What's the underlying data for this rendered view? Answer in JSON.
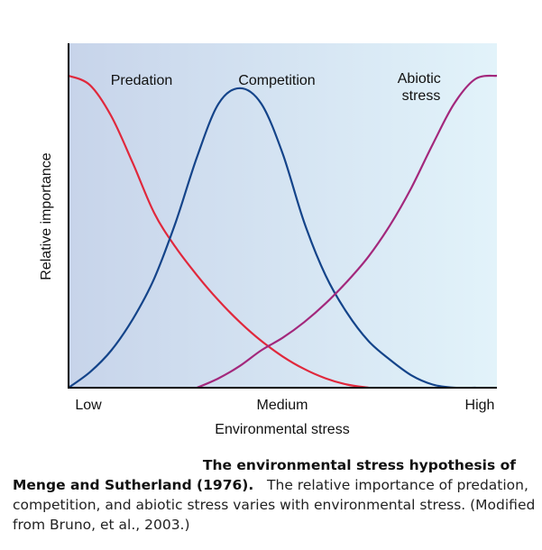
{
  "chart_data": {
    "type": "line",
    "title": "",
    "xlabel": "Environmental stress",
    "ylabel": "Relative importance",
    "x_tick_labels": [
      "Low",
      "Medium",
      "High"
    ],
    "xlim": [
      0,
      1
    ],
    "ylim": [
      0,
      1
    ],
    "grid": false,
    "legend": "none",
    "background_gradient": [
      "#c7d4ea",
      "#e2f3fa"
    ],
    "series": [
      {
        "name": "Predation",
        "color": "#e0283c",
        "x": [
          0,
          0.05,
          0.1,
          0.15,
          0.2,
          0.25,
          0.3,
          0.35,
          0.4,
          0.45,
          0.5,
          0.55,
          0.6,
          0.65,
          0.7
        ],
        "y": [
          1.0,
          0.97,
          0.87,
          0.72,
          0.56,
          0.45,
          0.36,
          0.28,
          0.21,
          0.15,
          0.1,
          0.06,
          0.03,
          0.01,
          0.0
        ]
      },
      {
        "name": "Competition",
        "color": "#14448a",
        "x": [
          0,
          0.05,
          0.1,
          0.15,
          0.2,
          0.25,
          0.3,
          0.35,
          0.4,
          0.45,
          0.5,
          0.55,
          0.6,
          0.65,
          0.7,
          0.75,
          0.8,
          0.85,
          0.9,
          0.95
        ],
        "y": [
          0.0,
          0.05,
          0.12,
          0.22,
          0.35,
          0.53,
          0.74,
          0.91,
          0.96,
          0.91,
          0.75,
          0.53,
          0.36,
          0.24,
          0.15,
          0.09,
          0.04,
          0.01,
          0.0,
          0.0
        ]
      },
      {
        "name": "Abiotic stress",
        "color": "#a3287c",
        "x": [
          0.3,
          0.35,
          0.4,
          0.45,
          0.5,
          0.55,
          0.6,
          0.65,
          0.7,
          0.75,
          0.8,
          0.85,
          0.9,
          0.95,
          1.0
        ],
        "y": [
          0.0,
          0.03,
          0.07,
          0.12,
          0.16,
          0.21,
          0.27,
          0.34,
          0.42,
          0.52,
          0.64,
          0.78,
          0.91,
          0.99,
          1.0
        ]
      }
    ],
    "series_labels": [
      {
        "lines": [
          "Predation"
        ]
      },
      {
        "lines": [
          "Competition"
        ]
      },
      {
        "lines": [
          "Abiotic",
          "stress"
        ]
      }
    ]
  },
  "caption": {
    "title_line1": "The environmental stress hypothesis of",
    "title_line2": "Menge and Sutherland (1976).",
    "body": "The relative importance of predation, competition, and abiotic stress varies with environmental stress. (Modified from Bruno, et al., 2003.)"
  }
}
